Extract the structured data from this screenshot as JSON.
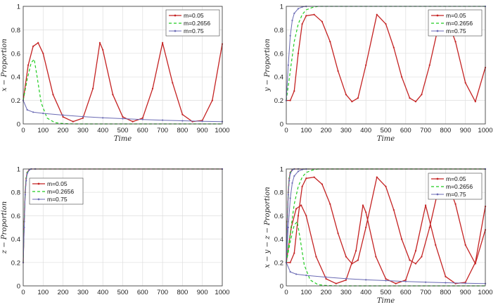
{
  "colors": {
    "m005": "#c42222",
    "m02656": "#22cc22",
    "m075": "#6a6ab4"
  },
  "chart_data": [
    {
      "type": "line",
      "id": "x",
      "xlabel": "Time",
      "ylabel": "x − Proportion",
      "xlim": [
        0,
        1000
      ],
      "ylim": [
        0,
        1
      ],
      "xticks": [
        "0",
        "100",
        "200",
        "300",
        "400",
        "500",
        "600",
        "700",
        "800",
        "900",
        "1000"
      ],
      "yticks": [
        "0",
        "0.2",
        "0.4",
        "0.6",
        "0.8",
        "1"
      ],
      "grid": true,
      "legend_position": "top-right",
      "series": [
        {
          "name": "m=0.05",
          "x": [
            0,
            25,
            50,
            75,
            100,
            150,
            200,
            250,
            300,
            350,
            385,
            400,
            450,
            500,
            550,
            600,
            650,
            700,
            750,
            800,
            850,
            900,
            950,
            1000
          ],
          "y": [
            0.2,
            0.5,
            0.66,
            0.69,
            0.6,
            0.25,
            0.06,
            0.02,
            0.05,
            0.3,
            0.69,
            0.63,
            0.25,
            0.06,
            0.02,
            0.05,
            0.3,
            0.69,
            0.35,
            0.08,
            0.02,
            0.03,
            0.2,
            0.68
          ]
        },
        {
          "name": "m=0.2656",
          "x": [
            0,
            20,
            40,
            55,
            70,
            90,
            120,
            160,
            200,
            260,
            400,
            1000
          ],
          "y": [
            0.2,
            0.38,
            0.52,
            0.55,
            0.4,
            0.18,
            0.05,
            0.01,
            0.003,
            0,
            0,
            0
          ]
        },
        {
          "name": "m=0.75",
          "x": [
            0,
            20,
            50,
            100,
            200,
            300,
            400,
            500,
            600,
            700,
            800,
            900,
            1000
          ],
          "y": [
            0.2,
            0.12,
            0.1,
            0.09,
            0.075,
            0.062,
            0.052,
            0.045,
            0.038,
            0.032,
            0.027,
            0.023,
            0.02
          ]
        }
      ]
    },
    {
      "type": "line",
      "id": "y",
      "xlabel": "Time",
      "ylabel": "y − Proportion",
      "xlim": [
        0,
        1000
      ],
      "ylim": [
        0,
        1
      ],
      "xticks": [
        "0",
        "100",
        "200",
        "300",
        "400",
        "500",
        "600",
        "700",
        "800",
        "900",
        "1000"
      ],
      "yticks": [
        "0",
        "0.2",
        "0.4",
        "0.6",
        "0.8",
        "1"
      ],
      "grid": true,
      "legend_position": "top-right",
      "series": [
        {
          "name": "m=0.05",
          "x": [
            0,
            20,
            40,
            60,
            80,
            100,
            140,
            180,
            220,
            260,
            300,
            330,
            360,
            400,
            455,
            500,
            540,
            580,
            620,
            650,
            680,
            720,
            760,
            800,
            850,
            900,
            950,
            1000
          ],
          "y": [
            0.2,
            0.2,
            0.28,
            0.6,
            0.85,
            0.92,
            0.93,
            0.87,
            0.7,
            0.45,
            0.25,
            0.19,
            0.22,
            0.5,
            0.93,
            0.85,
            0.65,
            0.4,
            0.22,
            0.19,
            0.25,
            0.5,
            0.8,
            0.93,
            0.7,
            0.35,
            0.19,
            0.48
          ]
        },
        {
          "name": "m=0.2656",
          "x": [
            0,
            20,
            40,
            60,
            80,
            100,
            130,
            160,
            200,
            1000
          ],
          "y": [
            0.2,
            0.45,
            0.7,
            0.85,
            0.93,
            0.97,
            0.99,
            1,
            1,
            1
          ]
        },
        {
          "name": "m=0.75",
          "x": [
            0,
            10,
            20,
            30,
            40,
            60,
            80,
            100,
            1000
          ],
          "y": [
            0.2,
            0.5,
            0.75,
            0.88,
            0.94,
            0.98,
            0.995,
            1,
            1
          ]
        }
      ]
    },
    {
      "type": "line",
      "id": "z",
      "xlabel": "",
      "ylabel": "z − Proportion",
      "xlim": [
        0,
        1000
      ],
      "ylim": [
        0,
        1
      ],
      "xticks": [
        "0",
        "100",
        "200",
        "300",
        "400",
        "500",
        "600",
        "700",
        "800",
        "900",
        "1000"
      ],
      "yticks": [
        "0",
        "0.2",
        "0.4",
        "0.6",
        "0.8",
        "1"
      ],
      "grid": true,
      "legend_position": "top-left",
      "series": [
        {
          "name": "m=0.05",
          "x": [
            0,
            5,
            10,
            15,
            20,
            30,
            40,
            60,
            1000
          ],
          "y": [
            0.2,
            0.55,
            0.8,
            0.92,
            0.97,
            0.995,
            1,
            1,
            1
          ]
        },
        {
          "name": "m=0.2656",
          "x": [
            0,
            5,
            10,
            15,
            20,
            30,
            40,
            60,
            1000
          ],
          "y": [
            0.2,
            0.55,
            0.8,
            0.92,
            0.97,
            0.995,
            1,
            1,
            1
          ]
        },
        {
          "name": "m=0.75",
          "x": [
            0,
            5,
            10,
            15,
            20,
            30,
            40,
            60,
            1000
          ],
          "y": [
            0.2,
            0.5,
            0.78,
            0.9,
            0.96,
            0.99,
            1,
            1,
            1
          ]
        }
      ]
    },
    {
      "type": "line",
      "id": "xyz",
      "xlabel": "Time",
      "ylabel": "x − y − z − Proportion",
      "xlim": [
        0,
        1000
      ],
      "ylim": [
        0,
        1
      ],
      "xticks": [
        "0",
        "100",
        "200",
        "300",
        "400",
        "500",
        "600",
        "700",
        "800",
        "900",
        "1000"
      ],
      "yticks": [
        "0",
        "0.2",
        "0.4",
        "0.6",
        "0.8",
        "1"
      ],
      "grid": true,
      "legend_position": "top-right",
      "series": [
        {
          "name": "m=0.05",
          "x": [
            0,
            25,
            50,
            75,
            100,
            150,
            200,
            250,
            300,
            350,
            385,
            400,
            450,
            500,
            550,
            600,
            650,
            700,
            750,
            800,
            850,
            900,
            950,
            1000
          ],
          "y": [
            0.2,
            0.5,
            0.66,
            0.69,
            0.6,
            0.25,
            0.06,
            0.02,
            0.05,
            0.3,
            0.69,
            0.63,
            0.25,
            0.06,
            0.02,
            0.05,
            0.3,
            0.69,
            0.35,
            0.08,
            0.02,
            0.03,
            0.2,
            0.68
          ]
        },
        {
          "name": "m=0.05",
          "x": [
            0,
            20,
            40,
            60,
            80,
            100,
            140,
            180,
            220,
            260,
            300,
            330,
            360,
            400,
            455,
            500,
            540,
            580,
            620,
            650,
            680,
            720,
            760,
            800,
            850,
            900,
            950,
            1000
          ],
          "y": [
            0.2,
            0.2,
            0.28,
            0.6,
            0.85,
            0.92,
            0.93,
            0.87,
            0.7,
            0.45,
            0.25,
            0.19,
            0.22,
            0.5,
            0.93,
            0.85,
            0.65,
            0.4,
            0.22,
            0.19,
            0.25,
            0.5,
            0.8,
            0.93,
            0.7,
            0.35,
            0.19,
            0.48
          ]
        },
        {
          "name": "m=0.05",
          "x": [
            0,
            5,
            10,
            15,
            20,
            30,
            40,
            60,
            1000
          ],
          "y": [
            0.2,
            0.55,
            0.8,
            0.92,
            0.97,
            0.995,
            1,
            1,
            1
          ]
        },
        {
          "name": "m=0.2656",
          "x": [
            0,
            20,
            40,
            55,
            70,
            90,
            120,
            160,
            200,
            260,
            400,
            1000
          ],
          "y": [
            0.2,
            0.38,
            0.52,
            0.55,
            0.4,
            0.18,
            0.05,
            0.01,
            0.003,
            0,
            0,
            0
          ]
        },
        {
          "name": "m=0.2656",
          "x": [
            0,
            20,
            40,
            60,
            80,
            100,
            130,
            160,
            200,
            1000
          ],
          "y": [
            0.2,
            0.45,
            0.7,
            0.85,
            0.93,
            0.97,
            0.99,
            1,
            1,
            1
          ]
        },
        {
          "name": "m=0.2656",
          "x": [
            0,
            5,
            10,
            15,
            20,
            30,
            40,
            60,
            1000
          ],
          "y": [
            0.2,
            0.55,
            0.8,
            0.92,
            0.97,
            0.995,
            1,
            1,
            1
          ]
        },
        {
          "name": "m=0.75",
          "x": [
            0,
            20,
            50,
            100,
            200,
            300,
            400,
            500,
            600,
            700,
            800,
            900,
            1000
          ],
          "y": [
            0.2,
            0.12,
            0.1,
            0.09,
            0.075,
            0.062,
            0.052,
            0.045,
            0.038,
            0.032,
            0.027,
            0.023,
            0.02
          ]
        },
        {
          "name": "m=0.75",
          "x": [
            0,
            10,
            20,
            30,
            40,
            60,
            80,
            100,
            1000
          ],
          "y": [
            0.2,
            0.5,
            0.75,
            0.88,
            0.94,
            0.98,
            0.995,
            1,
            1
          ]
        },
        {
          "name": "m=0.75",
          "x": [
            0,
            5,
            10,
            15,
            20,
            30,
            40,
            60,
            1000
          ],
          "y": [
            0.2,
            0.5,
            0.78,
            0.9,
            0.96,
            0.99,
            1,
            1,
            1
          ]
        }
      ]
    }
  ]
}
